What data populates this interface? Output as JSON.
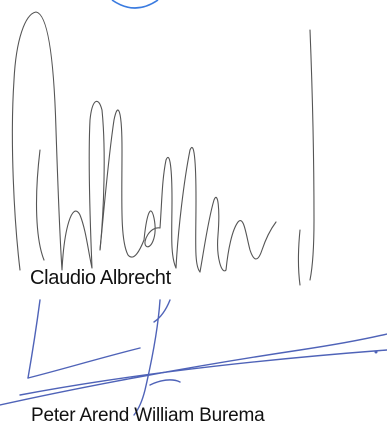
{
  "signatories": [
    {
      "name": "Claudio Albrecht"
    },
    {
      "name": "Peter Arend William Burema"
    }
  ],
  "colors": {
    "name_text": "#111111",
    "ink_grey": "#555555",
    "ink_blue": "#4f63b8",
    "seal_blue": "#3a7be0"
  }
}
